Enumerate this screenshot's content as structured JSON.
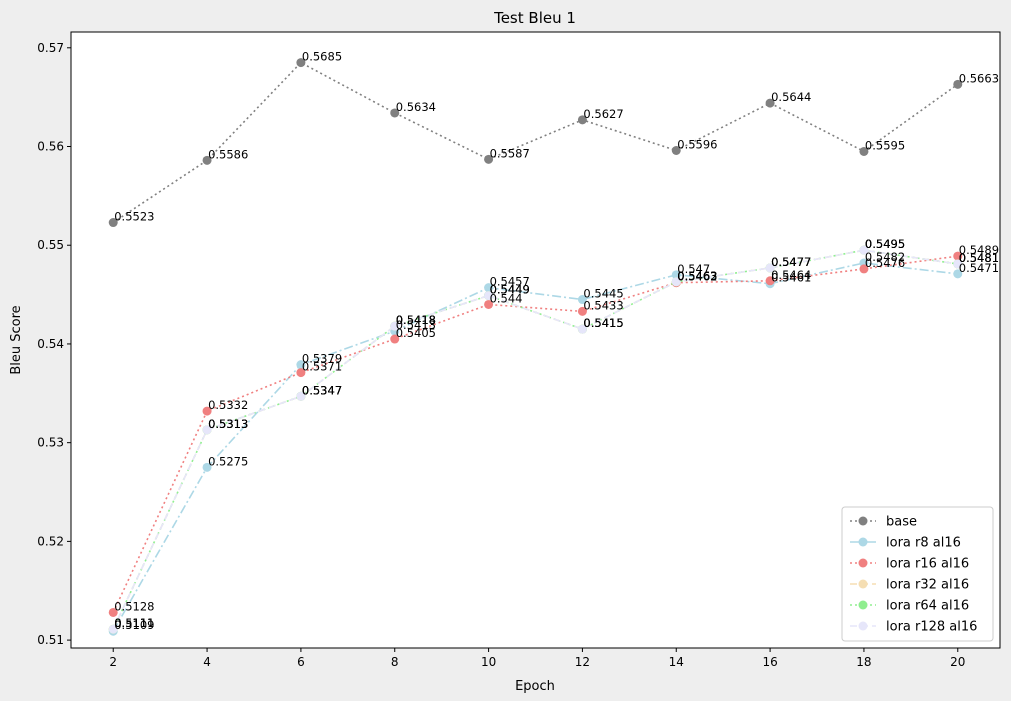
{
  "chart_data": {
    "type": "line",
    "title": "Test Bleu 1",
    "xlabel": "Epoch",
    "ylabel": "Bleu Score",
    "xlim": [
      1.1,
      20.9
    ],
    "ylim": [
      0.5092,
      0.5716
    ],
    "xticks": [
      2,
      4,
      6,
      8,
      10,
      12,
      14,
      16,
      18,
      20
    ],
    "xtick_labels": [
      "2",
      "4",
      "6",
      "8",
      "10",
      "12",
      "14",
      "16",
      "18",
      "20"
    ],
    "yticks": [
      0.51,
      0.52,
      0.53,
      0.54,
      0.55,
      0.56,
      0.57
    ],
    "ytick_labels": [
      "0.51",
      "0.52",
      "0.53",
      "0.54",
      "0.55",
      "0.56",
      "0.57"
    ],
    "grid": false,
    "legend_position": "lower-right",
    "x": [
      2,
      4,
      6,
      8,
      10,
      12,
      14,
      16,
      18,
      20
    ],
    "series": [
      {
        "name": "base",
        "color": "#808080",
        "linestyle": "dotted",
        "values": [
          0.5523,
          0.5586,
          0.5685,
          0.5634,
          0.5587,
          0.5627,
          0.5596,
          0.5644,
          0.5595,
          0.5663
        ],
        "labels": [
          "0.5523",
          "0.5586",
          "0.5685",
          "0.5634",
          "0.5587",
          "0.5627",
          "0.5596",
          "0.5644",
          "0.5595",
          "0.5663"
        ]
      },
      {
        "name": "lora r8 al16",
        "color": "#add8e6",
        "linestyle": "dashdot",
        "values": [
          0.5109,
          0.5275,
          0.5379,
          0.5413,
          0.5457,
          0.5445,
          0.547,
          0.5461,
          0.5482,
          0.5471
        ],
        "labels": [
          "0.5109",
          "0.5275",
          "0.5379",
          "0.5413",
          "0.5457",
          "0.5445",
          "0.547",
          "0.5461",
          "0.5482",
          "0.5471"
        ]
      },
      {
        "name": "lora r16 al16",
        "color": "#f08080",
        "linestyle": "dotted",
        "values": [
          0.5128,
          0.5332,
          0.5371,
          0.5405,
          0.544,
          0.5433,
          0.5462,
          0.5464,
          0.5476,
          0.5489
        ],
        "labels": [
          "0.5128",
          "0.5332",
          "0.5371",
          "0.5405",
          "0.544",
          "0.5433",
          "0.5462",
          "0.5464",
          "0.5476",
          "0.5489"
        ]
      },
      {
        "name": "lora r32 al16",
        "color": "#f5deb3",
        "linestyle": "dashed",
        "values": [
          0.5111,
          0.5313,
          0.5347,
          0.5418,
          0.5449,
          0.5415,
          0.5463,
          0.5477,
          0.5495,
          0.5481
        ],
        "labels": [
          "0.5111",
          "0.5313",
          "0.5347",
          "0.5418",
          "0.5449",
          "0.5415",
          "0.5463",
          "0.5477",
          "0.5495",
          "0.5481"
        ]
      },
      {
        "name": "lora r64 al16",
        "color": "#90ee90",
        "linestyle": "dotted",
        "values": [
          0.5111,
          0.5313,
          0.5347,
          0.5418,
          0.5449,
          0.5415,
          0.5463,
          0.5477,
          0.5495,
          0.5481
        ],
        "labels": [
          "0.5111",
          "0.5313",
          "0.5347",
          "0.5418",
          "0.5449",
          "0.5415",
          "0.5463",
          "0.5477",
          "0.5495",
          "0.5481"
        ]
      },
      {
        "name": "lora r128 al16",
        "color": "#e6e6fa",
        "linestyle": "dashed",
        "values": [
          0.5111,
          0.5313,
          0.5347,
          0.5418,
          0.5449,
          0.5415,
          0.5463,
          0.5477,
          0.5495,
          0.5481
        ],
        "labels": [
          "0.5111",
          "0.5313",
          "0.5347",
          "0.5418",
          "0.5449",
          "0.5415",
          "0.5463",
          "0.5477",
          "0.5495",
          "0.5481"
        ]
      }
    ]
  }
}
